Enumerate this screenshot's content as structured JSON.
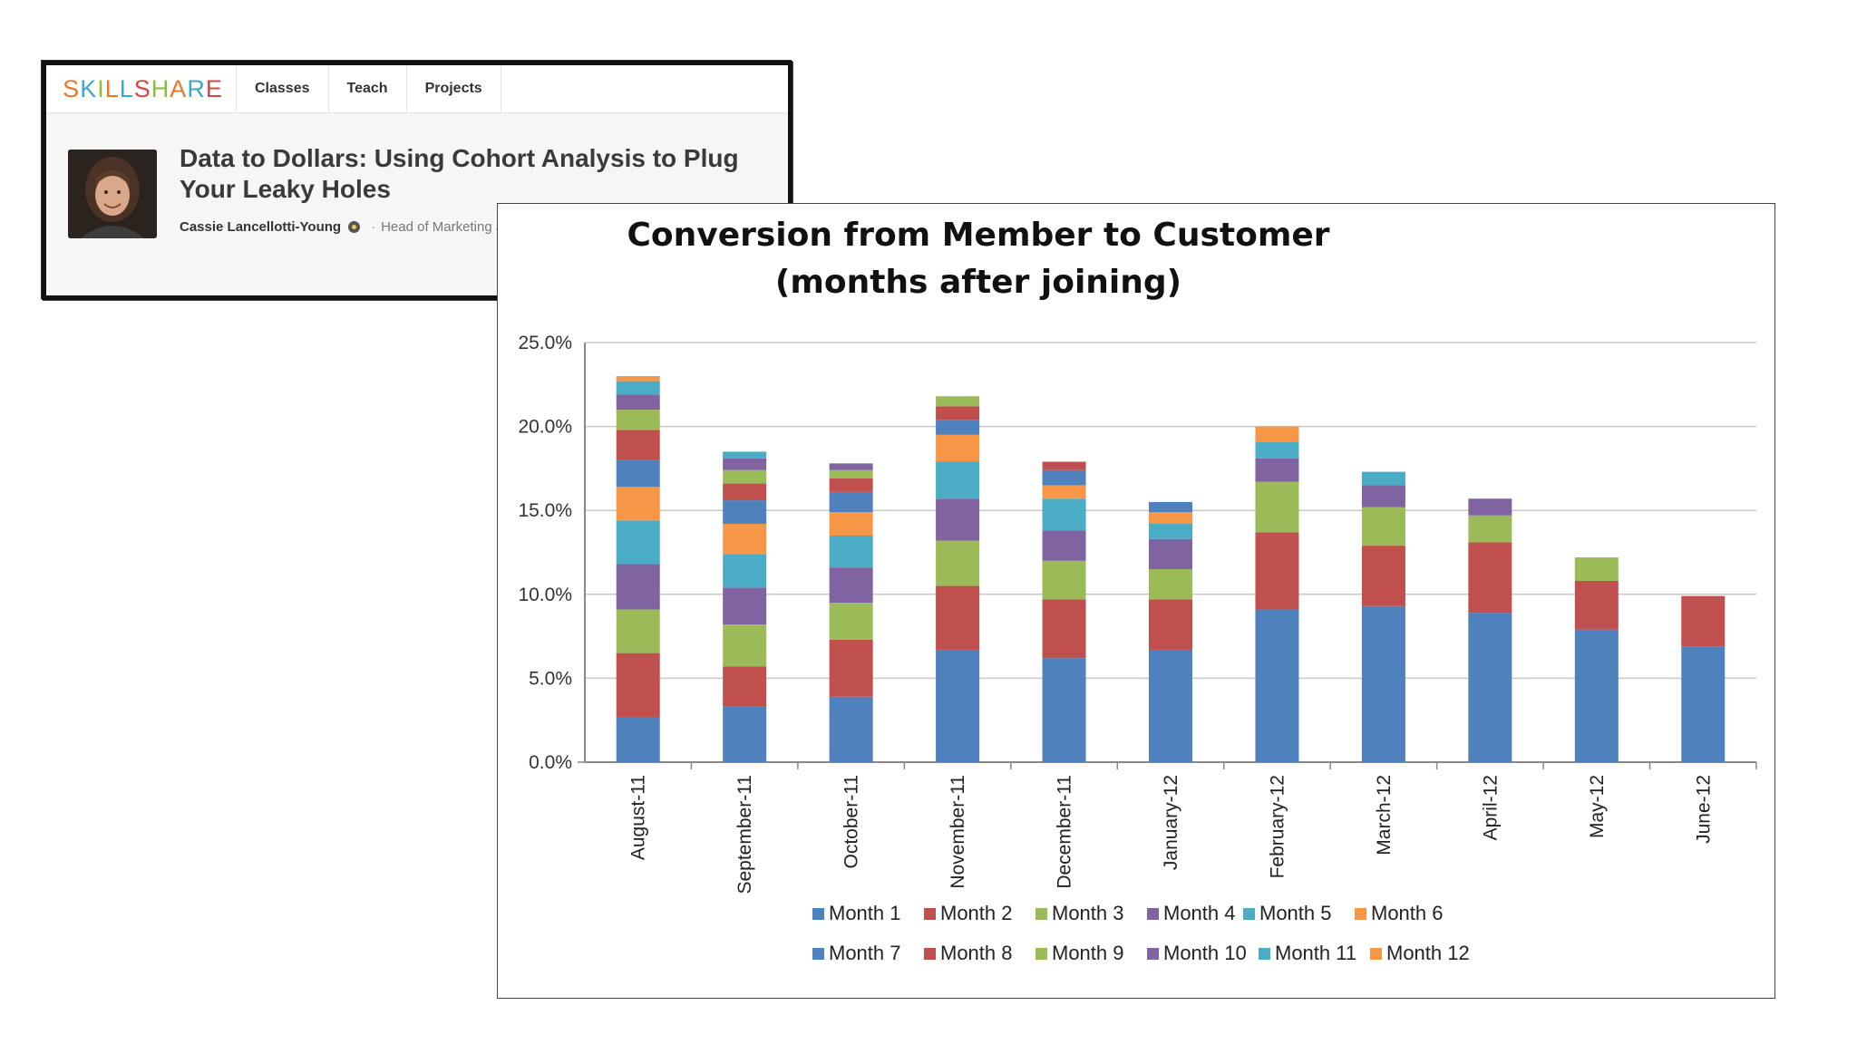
{
  "header": {
    "logo": "SKILLSHARE",
    "logo_colors": [
      "#e8792b",
      "#3fa9c9",
      "#8cbf3f",
      "#e8792b",
      "#3fa9c9",
      "#d8454b",
      "#8cbf3f",
      "#e8792b",
      "#3fa9c9",
      "#d8454b"
    ],
    "nav": [
      {
        "label": "Classes"
      },
      {
        "label": "Teach"
      },
      {
        "label": "Projects"
      }
    ]
  },
  "course": {
    "title": "Data to Dollars: Using Cohort Analysis to Plug Your Leaky Holes",
    "author": "Cassie Lancellotti-Young",
    "role": "Head of Marketing and Analytics, HighTable.com",
    "separator": "·"
  },
  "chart_data": {
    "type": "bar",
    "stacked": true,
    "title": [
      "Conversion from Member to Customer",
      "(months after joining)"
    ],
    "xlabel": "",
    "ylabel": "",
    "ylim": [
      0,
      25
    ],
    "yticks": [
      "0.0%",
      "5.0%",
      "10.0%",
      "15.0%",
      "20.0%",
      "25.0%"
    ],
    "grid": true,
    "legend_position": "bottom",
    "categories": [
      "August-11",
      "September-11",
      "October-11",
      "November-11",
      "December-11",
      "January-12",
      "February-12",
      "March-12",
      "April-12",
      "May-12",
      "June-12"
    ],
    "series": [
      {
        "name": "Month 1",
        "color": "#4f81bd",
        "values": [
          2.7,
          3.3,
          3.9,
          6.7,
          6.2,
          6.7,
          9.1,
          9.3,
          8.9,
          7.9,
          6.9
        ]
      },
      {
        "name": "Month 2",
        "color": "#c0504d",
        "values": [
          3.8,
          2.4,
          3.4,
          3.8,
          3.5,
          3.0,
          4.6,
          3.6,
          4.2,
          2.9,
          3.0
        ]
      },
      {
        "name": "Month 3",
        "color": "#9bbb59",
        "values": [
          2.6,
          2.5,
          2.2,
          2.7,
          2.3,
          1.8,
          3.0,
          2.3,
          1.6,
          1.4,
          null
        ]
      },
      {
        "name": "Month 4",
        "color": "#8064a2",
        "values": [
          2.7,
          2.2,
          2.1,
          2.5,
          1.8,
          1.8,
          1.4,
          1.3,
          1.0,
          null,
          null
        ]
      },
      {
        "name": "Month 5",
        "color": "#4bacc6",
        "values": [
          2.6,
          2.0,
          1.9,
          2.2,
          1.9,
          0.9,
          1.0,
          0.8,
          null,
          null,
          null
        ]
      },
      {
        "name": "Month 6",
        "color": "#f79646",
        "values": [
          2.0,
          1.8,
          1.4,
          1.6,
          0.8,
          0.7,
          0.9,
          null,
          null,
          null,
          null
        ]
      },
      {
        "name": "Month 7",
        "color": "#4f81bd",
        "values": [
          1.6,
          1.4,
          1.2,
          0.9,
          0.9,
          0.6,
          null,
          null,
          null,
          null,
          null
        ]
      },
      {
        "name": "Month 8",
        "color": "#c0504d",
        "values": [
          1.8,
          1.0,
          0.8,
          0.8,
          0.5,
          null,
          null,
          null,
          null,
          null,
          null
        ]
      },
      {
        "name": "Month 9",
        "color": "#9bbb59",
        "values": [
          1.2,
          0.8,
          0.5,
          0.6,
          null,
          null,
          null,
          null,
          null,
          null,
          null
        ]
      },
      {
        "name": "Month 10",
        "color": "#8064a2",
        "values": [
          0.9,
          0.7,
          0.4,
          null,
          null,
          null,
          null,
          null,
          null,
          null,
          null
        ]
      },
      {
        "name": "Month 11",
        "color": "#4bacc6",
        "values": [
          0.8,
          0.4,
          null,
          null,
          null,
          null,
          null,
          null,
          null,
          null,
          null
        ]
      },
      {
        "name": "Month 12",
        "color": "#f79646",
        "values": [
          0.3,
          null,
          null,
          null,
          null,
          null,
          null,
          null,
          null,
          null,
          null
        ]
      }
    ]
  }
}
